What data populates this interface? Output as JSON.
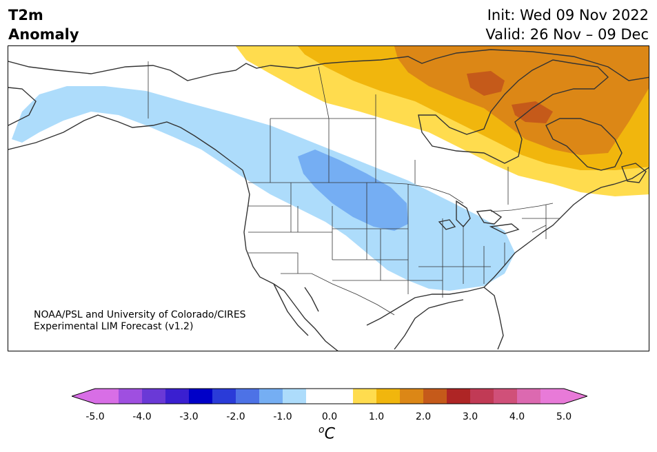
{
  "header": {
    "title_line1": "T2m",
    "title_line2": "Anomaly",
    "init_text": "Init: Wed 09 Nov 2022",
    "valid_text": "Valid: 26 Nov – 09 Dec"
  },
  "credit": {
    "line1": "NOAA/PSL and University of Colorado/CIRES",
    "line2": "Experimental LIM Forecast (v1.2)"
  },
  "colorbar": {
    "unit_symbol": "o",
    "unit_letter": "C",
    "ticks": [
      "-5.0",
      "-4.0",
      "-3.0",
      "-2.0",
      "-1.0",
      "0.0",
      "1.0",
      "2.0",
      "3.0",
      "4.0",
      "5.0"
    ],
    "min": -5.0,
    "max": 5.0,
    "step": 0.5,
    "colors": [
      "#d86ee6",
      "#9f4fe0",
      "#6a39d6",
      "#3a1fd0",
      "#0000c8",
      "#2a3bd8",
      "#4d72e6",
      "#75aef3",
      "#addcfb",
      "#ffffff",
      "#ffffff",
      "#ffdc4e",
      "#f1b60d",
      "#dc8716",
      "#c55a1a",
      "#ae2525",
      "#c13a55",
      "#d05079",
      "#dc69b0",
      "#e87ad8"
    ],
    "under_color": "#d86ee6",
    "over_color": "#e87ad8"
  },
  "map": {
    "region": "North America",
    "field": "2 m temperature anomaly",
    "anomaly_colors": {
      "minus_1_to_minus_0_5": "#addcfb",
      "minus_1_5_to_minus_1": "#75aef3",
      "plus_0_5_to_1": "#ffdc4e",
      "plus_1_to_1_5": "#f1b60d",
      "plus_1_5_to_2": "#dc8716",
      "plus_2_to_2_5": "#c55a1a"
    },
    "coastline_color": "#333333"
  }
}
